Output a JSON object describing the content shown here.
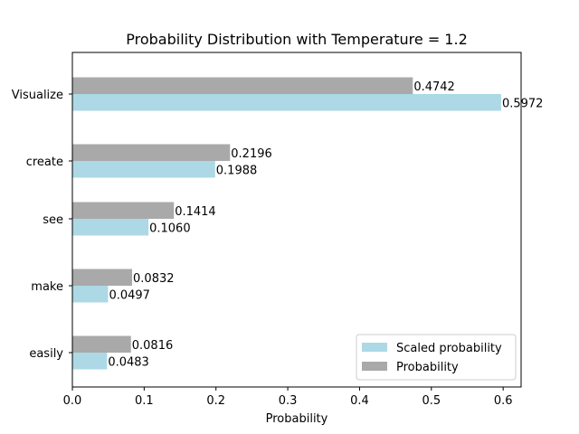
{
  "chart_data": {
    "type": "bar",
    "orientation": "horizontal",
    "title": "Probability Distribution with Temperature = 1.2",
    "xlabel": "Probability",
    "ylabel": "",
    "categories": [
      "Visualize",
      "create",
      "see",
      "make",
      "easily"
    ],
    "series": [
      {
        "name": "Probability",
        "color": "#a9a9a9",
        "values": [
          0.4742,
          0.2196,
          0.1414,
          0.0832,
          0.0816
        ],
        "labels": [
          "0.4742",
          "0.2196",
          "0.1414",
          "0.0832",
          "0.0816"
        ]
      },
      {
        "name": "Scaled probability",
        "color": "#add8e6",
        "values": [
          0.5972,
          0.1988,
          0.106,
          0.0497,
          0.0483
        ],
        "labels": [
          "0.5972",
          "0.1988",
          "0.1060",
          "0.0497",
          "0.0483"
        ]
      }
    ],
    "xlim": [
      0,
      0.625
    ],
    "xticks": [
      "0.0",
      "0.1",
      "0.2",
      "0.3",
      "0.4",
      "0.5",
      "0.6"
    ],
    "grid": false,
    "legend": {
      "location": "lower-right",
      "entries": [
        "Scaled probability",
        "Probability"
      ]
    }
  }
}
